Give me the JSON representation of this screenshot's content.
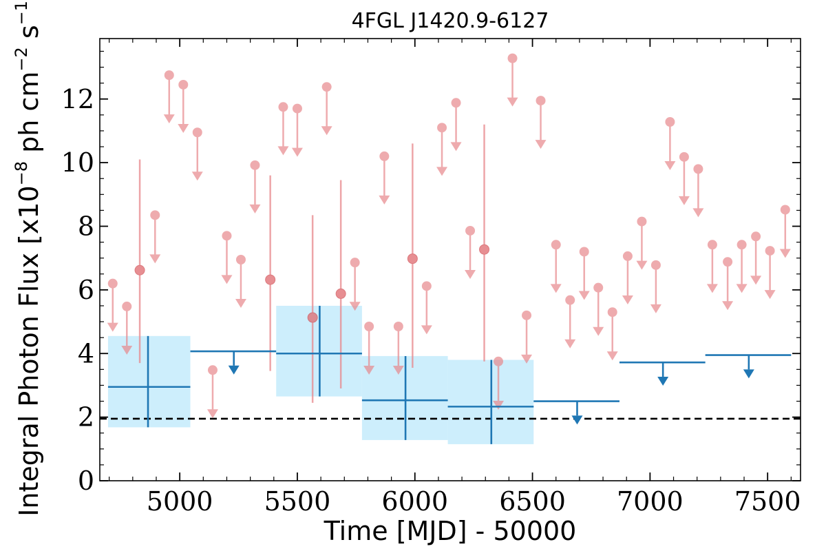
{
  "chart_data": {
    "type": "scatter",
    "title": "4FGL J1420.9-6127",
    "xlabel": "Time [MJD] - 50000",
    "ylabel": "Integral Photon Flux [x10",
    "ylabel_exp": "−8",
    "ylabel_unit": " ph cm",
    "ylabel_exp2": "−2",
    "ylabel_s": " s",
    "ylabel_exp3": "−1",
    "ylabel_end": "]",
    "xlim": [
      4660,
      7640
    ],
    "ylim": [
      0,
      13.9
    ],
    "xticks": [
      5000,
      5500,
      6000,
      6500,
      7000,
      7500
    ],
    "yticks": [
      0,
      2,
      4,
      6,
      8,
      10,
      12
    ],
    "grid": false,
    "reference_line": {
      "y": 1.95,
      "style": "dashed",
      "color": "#000000"
    },
    "colors": {
      "short_bins": "#e8888c",
      "long_bins": "#1f77b4",
      "long_bins_band": "#cdeefc"
    },
    "series": [
      {
        "kind": "short_bins_detections",
        "points": [
          {
            "x": 4830,
            "y": 6.62,
            "ylow": 3.7,
            "yhigh": 10.1
          },
          {
            "x": 5385,
            "y": 6.32,
            "ylow": 3.45,
            "yhigh": 9.6
          },
          {
            "x": 5565,
            "y": 5.13,
            "ylow": 2.45,
            "yhigh": 8.35
          },
          {
            "x": 5685,
            "y": 5.88,
            "ylow": 2.9,
            "yhigh": 9.45
          },
          {
            "x": 5990,
            "y": 6.98,
            "ylow": 3.55,
            "yhigh": 10.6
          },
          {
            "x": 6295,
            "y": 7.27,
            "ylow": 3.75,
            "yhigh": 11.2
          }
        ]
      },
      {
        "kind": "short_bins_upper_limits",
        "points": [
          {
            "x": 4715,
            "y": 6.2
          },
          {
            "x": 4775,
            "y": 5.48
          },
          {
            "x": 4895,
            "y": 8.35
          },
          {
            "x": 4955,
            "y": 12.75
          },
          {
            "x": 5015,
            "y": 12.45
          },
          {
            "x": 5075,
            "y": 10.95
          },
          {
            "x": 5140,
            "y": 3.48
          },
          {
            "x": 5200,
            "y": 7.7
          },
          {
            "x": 5260,
            "y": 6.95
          },
          {
            "x": 5320,
            "y": 9.92
          },
          {
            "x": 5440,
            "y": 11.75
          },
          {
            "x": 5500,
            "y": 11.7
          },
          {
            "x": 5625,
            "y": 12.38
          },
          {
            "x": 5745,
            "y": 6.86
          },
          {
            "x": 5805,
            "y": 4.85
          },
          {
            "x": 5870,
            "y": 10.2
          },
          {
            "x": 5930,
            "y": 4.85
          },
          {
            "x": 6050,
            "y": 6.12
          },
          {
            "x": 6115,
            "y": 11.1
          },
          {
            "x": 6175,
            "y": 11.88
          },
          {
            "x": 6235,
            "y": 7.86
          },
          {
            "x": 6355,
            "y": 3.75
          },
          {
            "x": 6415,
            "y": 13.28
          },
          {
            "x": 6475,
            "y": 5.2
          },
          {
            "x": 6535,
            "y": 11.95
          },
          {
            "x": 6600,
            "y": 7.42
          },
          {
            "x": 6660,
            "y": 5.68
          },
          {
            "x": 6720,
            "y": 7.2
          },
          {
            "x": 6780,
            "y": 6.07
          },
          {
            "x": 6840,
            "y": 5.3
          },
          {
            "x": 6905,
            "y": 7.06
          },
          {
            "x": 6965,
            "y": 8.15
          },
          {
            "x": 7025,
            "y": 6.78
          },
          {
            "x": 7085,
            "y": 11.28
          },
          {
            "x": 7145,
            "y": 10.18
          },
          {
            "x": 7205,
            "y": 9.8
          },
          {
            "x": 7265,
            "y": 7.42
          },
          {
            "x": 7330,
            "y": 6.88
          },
          {
            "x": 7390,
            "y": 7.42
          },
          {
            "x": 7450,
            "y": 7.68
          },
          {
            "x": 7510,
            "y": 7.23
          },
          {
            "x": 7575,
            "y": 8.52
          }
        ]
      },
      {
        "kind": "long_bins_detections",
        "points": [
          {
            "x": 4865,
            "xlow": 4695,
            "xhigh": 5045,
            "y": 2.95,
            "ylow": 1.68,
            "yhigh": 4.55
          },
          {
            "x": 5595,
            "xlow": 5410,
            "xhigh": 5775,
            "y": 4.0,
            "ylow": 2.65,
            "yhigh": 5.5
          },
          {
            "x": 5960,
            "xlow": 5775,
            "xhigh": 6140,
            "y": 2.53,
            "ylow": 1.28,
            "yhigh": 3.92
          },
          {
            "x": 6325,
            "xlow": 6140,
            "xhigh": 6505,
            "y": 2.33,
            "ylow": 1.15,
            "yhigh": 3.8
          }
        ]
      },
      {
        "kind": "long_bins_upper_limits",
        "points": [
          {
            "x": 5230,
            "xlow": 5045,
            "xhigh": 5410,
            "y": 4.07
          },
          {
            "x": 6690,
            "xlow": 6505,
            "xhigh": 6870,
            "y": 2.5
          },
          {
            "x": 7055,
            "xlow": 6870,
            "xhigh": 7235,
            "y": 3.72
          },
          {
            "x": 7420,
            "xlow": 7235,
            "xhigh": 7600,
            "y": 3.95
          }
        ]
      }
    ]
  }
}
